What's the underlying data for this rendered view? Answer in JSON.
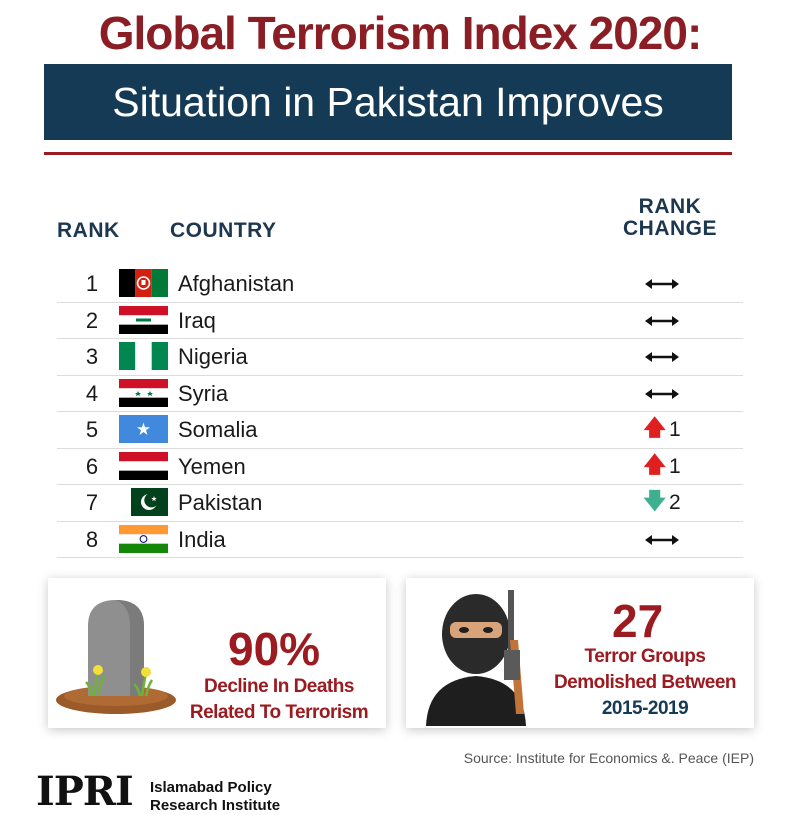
{
  "colors": {
    "title": "#8b1e24",
    "navy": "#143a56",
    "accent_red": "#9b1b21",
    "header_text": "#1d3750"
  },
  "title": "Global Terrorism Index 2020:",
  "subtitle": "Situation in Pakistan Improves",
  "table": {
    "headers": {
      "rank": "RANK",
      "country": "COUNTRY",
      "change_line1": "RANK",
      "change_line2": "CHANGE"
    },
    "rows": [
      {
        "rank": "1",
        "country": "Afghanistan",
        "flag": "afghanistan-flag-icon",
        "change": "↔",
        "change_dir": "same"
      },
      {
        "rank": "2",
        "country": "Iraq",
        "flag": "iraq-flag-icon",
        "change": "↔",
        "change_dir": "same"
      },
      {
        "rank": "3",
        "country": "Nigeria",
        "flag": "nigeria-flag-icon",
        "change": "↔",
        "change_dir": "same"
      },
      {
        "rank": "4",
        "country": "Syria",
        "flag": "syria-flag-icon",
        "change": "↔",
        "change_dir": "same"
      },
      {
        "rank": "5",
        "country": "Somalia",
        "flag": "somalia-flag-icon",
        "change": "1",
        "change_dir": "up"
      },
      {
        "rank": "6",
        "country": "Yemen",
        "flag": "yemen-flag-icon",
        "change": "1",
        "change_dir": "up"
      },
      {
        "rank": "7",
        "country": "Pakistan",
        "flag": "pakistan-flag-icon",
        "change": "2",
        "change_dir": "down"
      },
      {
        "rank": "8",
        "country": "India",
        "flag": "india-flag-icon",
        "change": "↔",
        "change_dir": "same"
      }
    ]
  },
  "stat_left": {
    "value": "90%",
    "line1": "Decline In Deaths",
    "line2": "Related To Terrorism",
    "icon": "gravestone-icon"
  },
  "stat_right": {
    "value": "27",
    "line1": "Terror Groups",
    "line2": "Demolished Between",
    "line3": "2015-2019",
    "icon": "militant-icon"
  },
  "source": "Source: Institute for Economics &. Peace (IEP)",
  "logo": {
    "mark": "IPRI",
    "line1": "Islamabad Policy",
    "line2": "Research Institute"
  }
}
